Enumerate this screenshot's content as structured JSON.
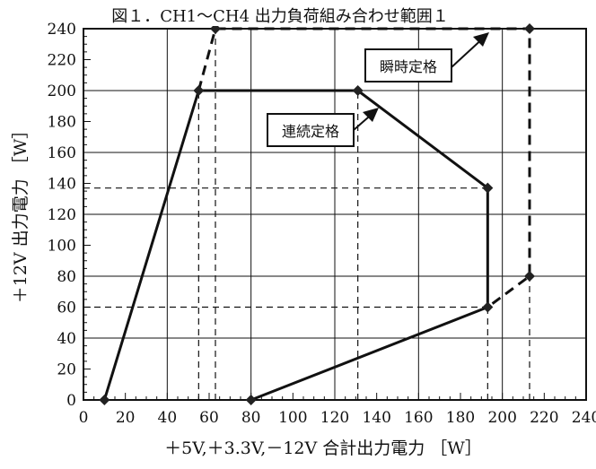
{
  "chart_data": {
    "type": "line",
    "title": "図１．CH1～CH4 出力負荷組み合わせ範囲１",
    "xlabel": "＋5V,＋3.3V,－12V 合計出力電力 ［W］",
    "ylabel": "＋12V 出力電力 ［W］",
    "xlim": [
      0,
      240
    ],
    "ylim": [
      0,
      240
    ],
    "x_ticks": [
      0,
      20,
      40,
      60,
      80,
      100,
      120,
      140,
      160,
      180,
      200,
      220,
      240
    ],
    "y_ticks": [
      0,
      20,
      40,
      60,
      80,
      100,
      120,
      140,
      160,
      180,
      200,
      220,
      240
    ],
    "grid": true,
    "series": [
      {
        "name": "連続定格",
        "style": "solid",
        "color": "#111111",
        "points": [
          [
            10,
            0
          ],
          [
            55,
            200
          ],
          [
            131,
            200
          ],
          [
            193,
            137
          ],
          [
            193,
            60
          ],
          [
            80,
            0
          ]
        ]
      },
      {
        "name": "瞬時定格",
        "style": "dashed",
        "color": "#111111",
        "points": [
          [
            55,
            200
          ],
          [
            63,
            240
          ],
          [
            213,
            240
          ],
          [
            213,
            80
          ],
          [
            193,
            60
          ]
        ]
      }
    ],
    "reference_lines": [
      {
        "from": [
          0,
          137
        ],
        "to": [
          193,
          137
        ]
      },
      {
        "from": [
          0,
          60
        ],
        "to": [
          193,
          60
        ]
      },
      {
        "from": [
          55,
          0
        ],
        "to": [
          55,
          200
        ]
      },
      {
        "from": [
          63,
          0
        ],
        "to": [
          63,
          240
        ]
      },
      {
        "from": [
          131,
          0
        ],
        "to": [
          131,
          200
        ]
      },
      {
        "from": [
          193,
          0
        ],
        "to": [
          193,
          60
        ]
      },
      {
        "from": [
          213,
          0
        ],
        "to": [
          213,
          80
        ]
      }
    ],
    "annotations": [
      {
        "text": "瞬時定格",
        "target": "瞬時定格"
      },
      {
        "text": "連続定格",
        "target": "連続定格"
      }
    ]
  }
}
